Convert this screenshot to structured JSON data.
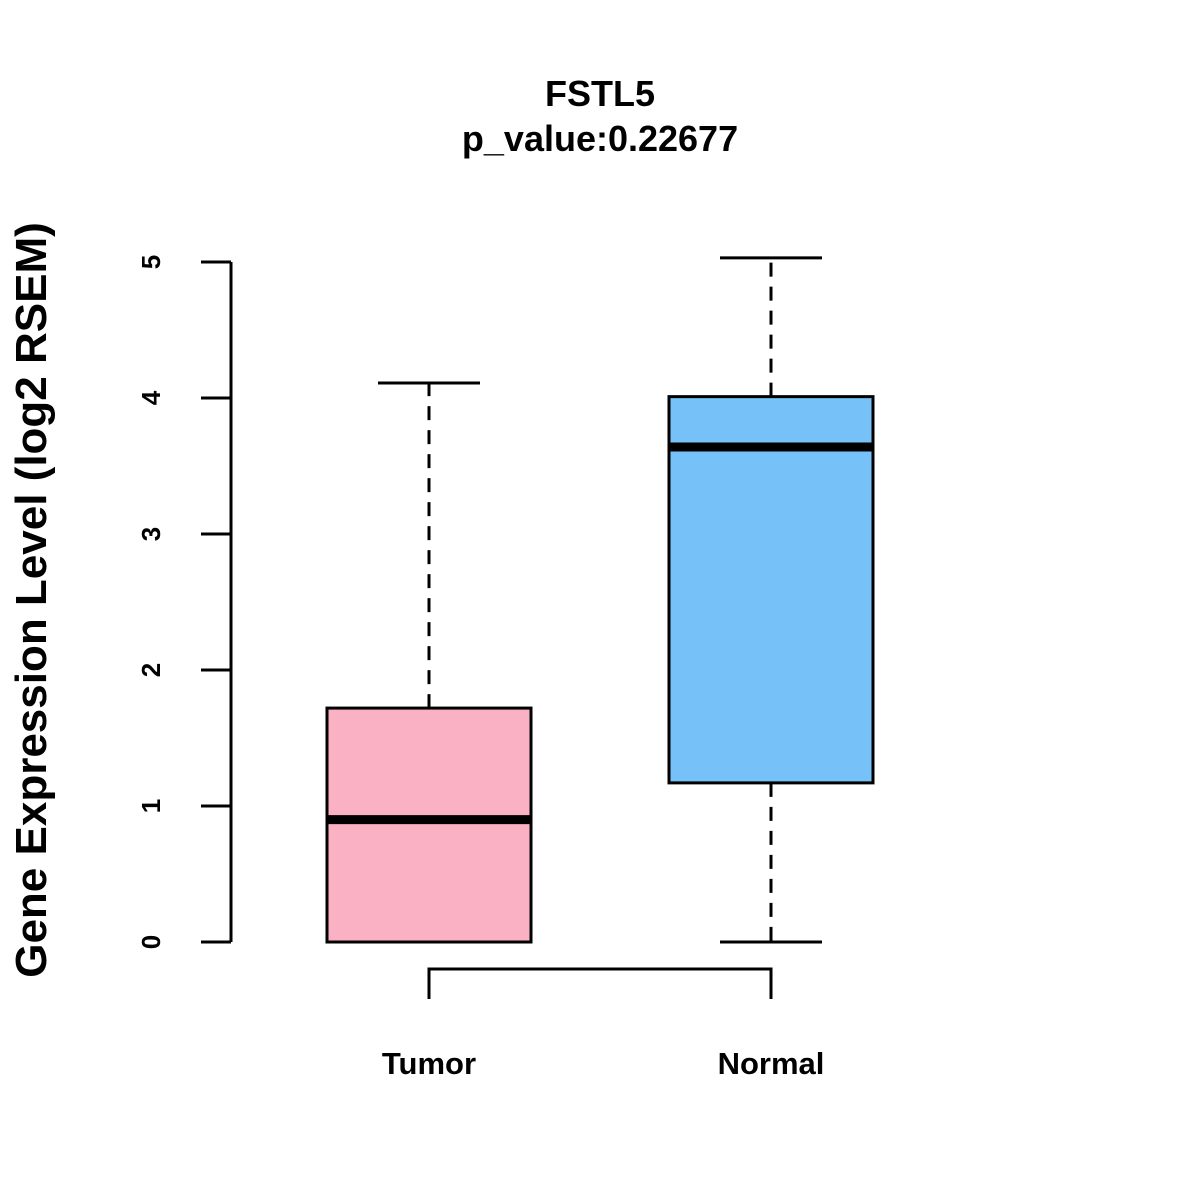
{
  "chart_data": {
    "type": "box",
    "title": "FSTL5",
    "subtitle": "p_value:0.22677",
    "xlabel": "",
    "ylabel": "Gene Expression Level (log2 RSEM)",
    "ylim": [
      0,
      5
    ],
    "yticks": [
      0,
      1,
      2,
      3,
      4,
      5
    ],
    "grid": false,
    "categories": [
      "Tumor",
      "Normal"
    ],
    "boxes": [
      {
        "name": "Tumor",
        "whisker_low": 0.0,
        "q1": 0.0,
        "median": 0.9,
        "q3": 1.72,
        "whisker_high": 4.11,
        "color": "#FBB1C4"
      },
      {
        "name": "Normal",
        "whisker_low": 0.0,
        "q1": 1.17,
        "median": 3.64,
        "q3": 4.01,
        "whisker_high": 5.03,
        "color": "#76C1F8"
      }
    ],
    "comparison_bracket": {
      "from": "Tumor",
      "to": "Normal"
    }
  }
}
